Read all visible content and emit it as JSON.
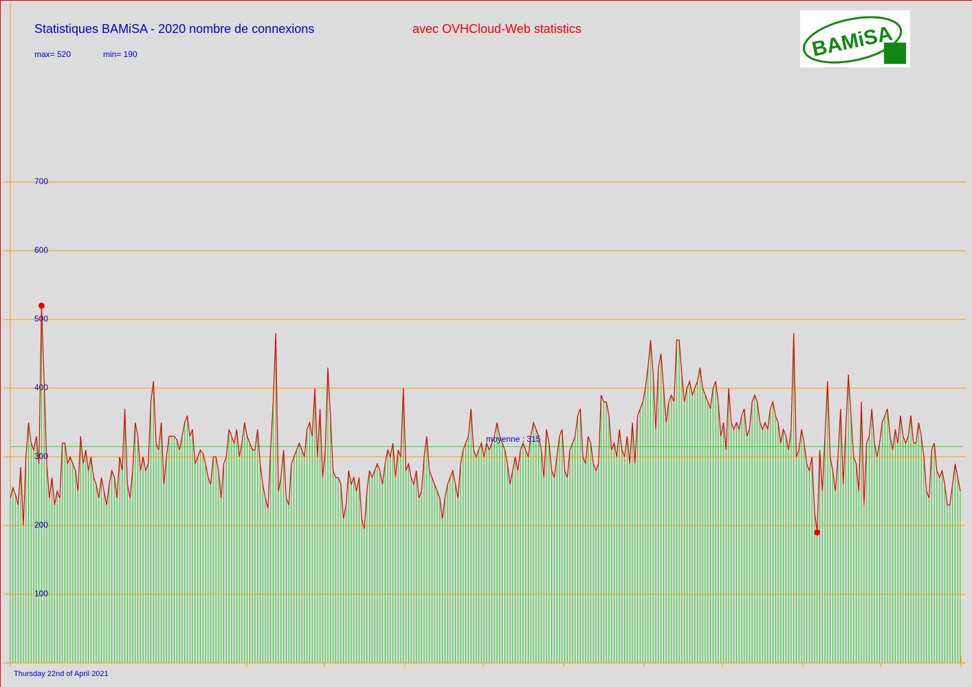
{
  "chart_data": {
    "type": "bar-line",
    "title": "Statistiques BAMiSA - 2020 nombre de connexions",
    "subtitle": "avec OVHCloud-Web statistics",
    "max_label": "max= 520",
    "min_label": "min= 190",
    "mean": 315,
    "mean_label": "moyenne : 315",
    "date": "Thursday 22nd of April 2021",
    "logo": "BAMiSA",
    "bar_color": "#22cc22",
    "line_color": "#dd0000",
    "grid_color": "#ff9900",
    "ylim": [
      0,
      700
    ],
    "yticks": [
      100,
      200,
      300,
      400,
      500,
      600,
      700
    ],
    "values": [
      240,
      255,
      245,
      230,
      285,
      200,
      300,
      350,
      320,
      310,
      330,
      290,
      520,
      410,
      290,
      240,
      270,
      230,
      250,
      240,
      320,
      320,
      290,
      300,
      290,
      280,
      250,
      330,
      290,
      310,
      280,
      300,
      270,
      260,
      240,
      270,
      250,
      230,
      260,
      280,
      270,
      240,
      300,
      280,
      370,
      260,
      240,
      280,
      350,
      330,
      280,
      300,
      280,
      290,
      380,
      410,
      320,
      310,
      350,
      260,
      300,
      330,
      330,
      330,
      325,
      310,
      330,
      350,
      360,
      330,
      340,
      290,
      300,
      310,
      305,
      290,
      270,
      260,
      300,
      300,
      280,
      240,
      290,
      300,
      340,
      330,
      320,
      340,
      300,
      320,
      350,
      330,
      320,
      310,
      310,
      340,
      290,
      260,
      240,
      225,
      310,
      380,
      480,
      250,
      270,
      310,
      240,
      230,
      290,
      300,
      310,
      320,
      310,
      300,
      340,
      350,
      330,
      400,
      300,
      370,
      270,
      310,
      430,
      360,
      280,
      270,
      270,
      260,
      210,
      230,
      280,
      260,
      270,
      250,
      270,
      210,
      195,
      250,
      280,
      270,
      280,
      290,
      280,
      260,
      290,
      310,
      300,
      320,
      270,
      310,
      300,
      400,
      280,
      290,
      270,
      260,
      280,
      240,
      250,
      300,
      330,
      280,
      270,
      260,
      250,
      240,
      210,
      240,
      260,
      270,
      280,
      260,
      240,
      290,
      310,
      320,
      330,
      370,
      310,
      300,
      310,
      320,
      300,
      320,
      310,
      320,
      330,
      350,
      330,
      320,
      310,
      290,
      260,
      280,
      300,
      280,
      310,
      320,
      310,
      300,
      330,
      350,
      340,
      330,
      310,
      270,
      340,
      320,
      280,
      270,
      300,
      330,
      340,
      280,
      270,
      310,
      320,
      330,
      360,
      370,
      300,
      290,
      330,
      320,
      290,
      280,
      290,
      390,
      380,
      380,
      360,
      310,
      320,
      300,
      340,
      310,
      300,
      330,
      290,
      350,
      290,
      360,
      370,
      380,
      400,
      430,
      470,
      420,
      340,
      430,
      450,
      400,
      350,
      380,
      390,
      380,
      470,
      470,
      420,
      380,
      400,
      410,
      390,
      400,
      410,
      430,
      400,
      390,
      380,
      370,
      400,
      410,
      380,
      330,
      350,
      310,
      400,
      350,
      340,
      350,
      340,
      360,
      370,
      330,
      340,
      380,
      390,
      380,
      350,
      340,
      350,
      340,
      370,
      380,
      360,
      350,
      320,
      340,
      330,
      310,
      340,
      480,
      300,
      310,
      340,
      320,
      290,
      280,
      300,
      220,
      190,
      310,
      250,
      330,
      410,
      300,
      280,
      250,
      300,
      370,
      260,
      340,
      420,
      360,
      300,
      290,
      250,
      380,
      230,
      320,
      330,
      370,
      320,
      300,
      320,
      350,
      360,
      370,
      330,
      310,
      340,
      320,
      360,
      330,
      320,
      330,
      360,
      320,
      320,
      350,
      330,
      300,
      250,
      240,
      310,
      320,
      280,
      270,
      280,
      260,
      230,
      230,
      260,
      290,
      270,
      250
    ]
  }
}
